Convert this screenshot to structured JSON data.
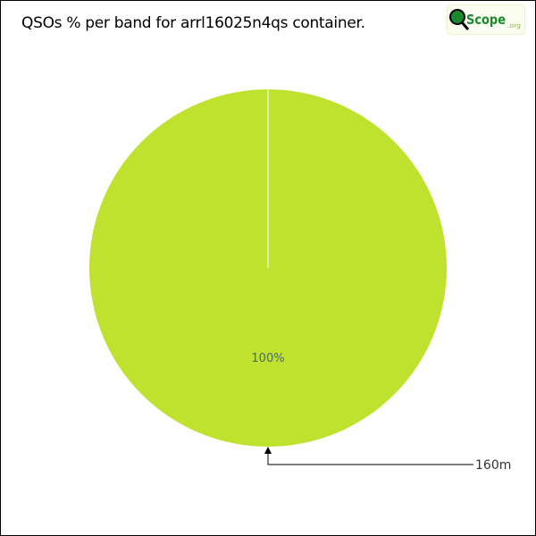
{
  "chart_data": {
    "type": "pie",
    "title": "QSOs % per band for arrl16025n4qs container.",
    "slices": [
      {
        "label": "160m",
        "value": 100,
        "percent_label": "100%",
        "color": "#bfe22f"
      }
    ]
  },
  "logo": {
    "text": "QSLScope.org",
    "color": "#1a8a2e"
  }
}
